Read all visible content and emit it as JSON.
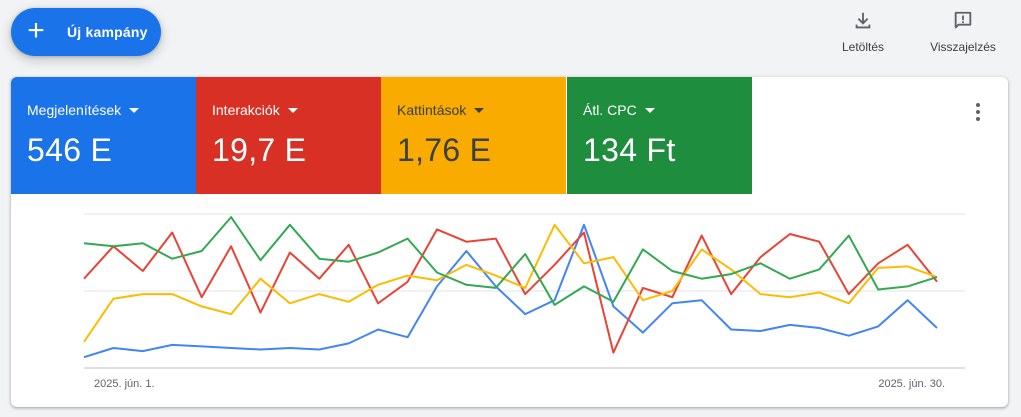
{
  "toolbar": {
    "new_campaign_label": "Új kampány",
    "download_label": "Letöltés",
    "feedback_label": "Visszajelzés"
  },
  "icons": {
    "new_campaign": "plus-icon",
    "download": "download-icon",
    "feedback": "feedback-icon",
    "more": "more-vert-icon",
    "metric_dropdown": "caret-down-icon"
  },
  "metrics": [
    {
      "label": "Megjelenítések",
      "value": "546 E",
      "color": "#1a73e8"
    },
    {
      "label": "Interakciók",
      "value": "19,7 E",
      "color": "#d93025"
    },
    {
      "label": "Kattintások",
      "value": "1,76 E",
      "color": "#f9ab00"
    },
    {
      "label": "Átl. CPC",
      "value": "134 Ft",
      "color": "#1e8e3e"
    }
  ],
  "chart_data": {
    "type": "line",
    "x": [
      "2025. jún. 1.",
      "2025. jún. 2.",
      "2025. jún. 3.",
      "2025. jún. 4.",
      "2025. jún. 5.",
      "2025. jún. 6.",
      "2025. jún. 7.",
      "2025. jún. 8.",
      "2025. jún. 9.",
      "2025. jún. 10.",
      "2025. jún. 11.",
      "2025. jún. 12.",
      "2025. jún. 13.",
      "2025. jún. 14.",
      "2025. jún. 15.",
      "2025. jún. 16.",
      "2025. jún. 17.",
      "2025. jún. 18.",
      "2025. jún. 19.",
      "2025. jún. 20.",
      "2025. jún. 21.",
      "2025. jún. 22.",
      "2025. jún. 23.",
      "2025. jún. 24.",
      "2025. jún. 25.",
      "2025. jún. 26.",
      "2025. jún. 27.",
      "2025. jún. 28.",
      "2025. jún. 29.",
      "2025. jún. 30."
    ],
    "xtick_labels": [
      "2025. jún. 1.",
      "2025. jún. 30."
    ],
    "ylim": [
      0,
      100
    ],
    "grid": true,
    "series": [
      {
        "color": "#4285f4",
        "values": [
          7,
          13,
          11,
          15,
          14,
          13,
          12,
          13,
          12,
          16,
          25,
          20,
          53,
          76,
          53,
          35,
          44,
          93,
          40,
          23,
          42,
          44,
          25,
          24,
          28,
          26,
          21,
          27,
          44,
          26
        ]
      },
      {
        "color": "#ea4335",
        "values": [
          58,
          79,
          63,
          88,
          46,
          79,
          36,
          75,
          58,
          80,
          42,
          56,
          90,
          82,
          84,
          48,
          67,
          88,
          10,
          52,
          46,
          86,
          48,
          72,
          87,
          82,
          48,
          68,
          80,
          56
        ]
      },
      {
        "color": "#fbbc04",
        "values": [
          17,
          45,
          48,
          48,
          40,
          35,
          58,
          42,
          48,
          43,
          54,
          60,
          57,
          67,
          60,
          52,
          93,
          68,
          72,
          44,
          50,
          77,
          64,
          48,
          46,
          49,
          42,
          65,
          66,
          59
        ]
      },
      {
        "color": "#34a853",
        "values": [
          81,
          79,
          81,
          71,
          76,
          98,
          70,
          93,
          71,
          69,
          75,
          84,
          62,
          54,
          52,
          74,
          41,
          53,
          43,
          77,
          63,
          58,
          61,
          68,
          58,
          64,
          86,
          51,
          53,
          59
        ]
      }
    ]
  }
}
